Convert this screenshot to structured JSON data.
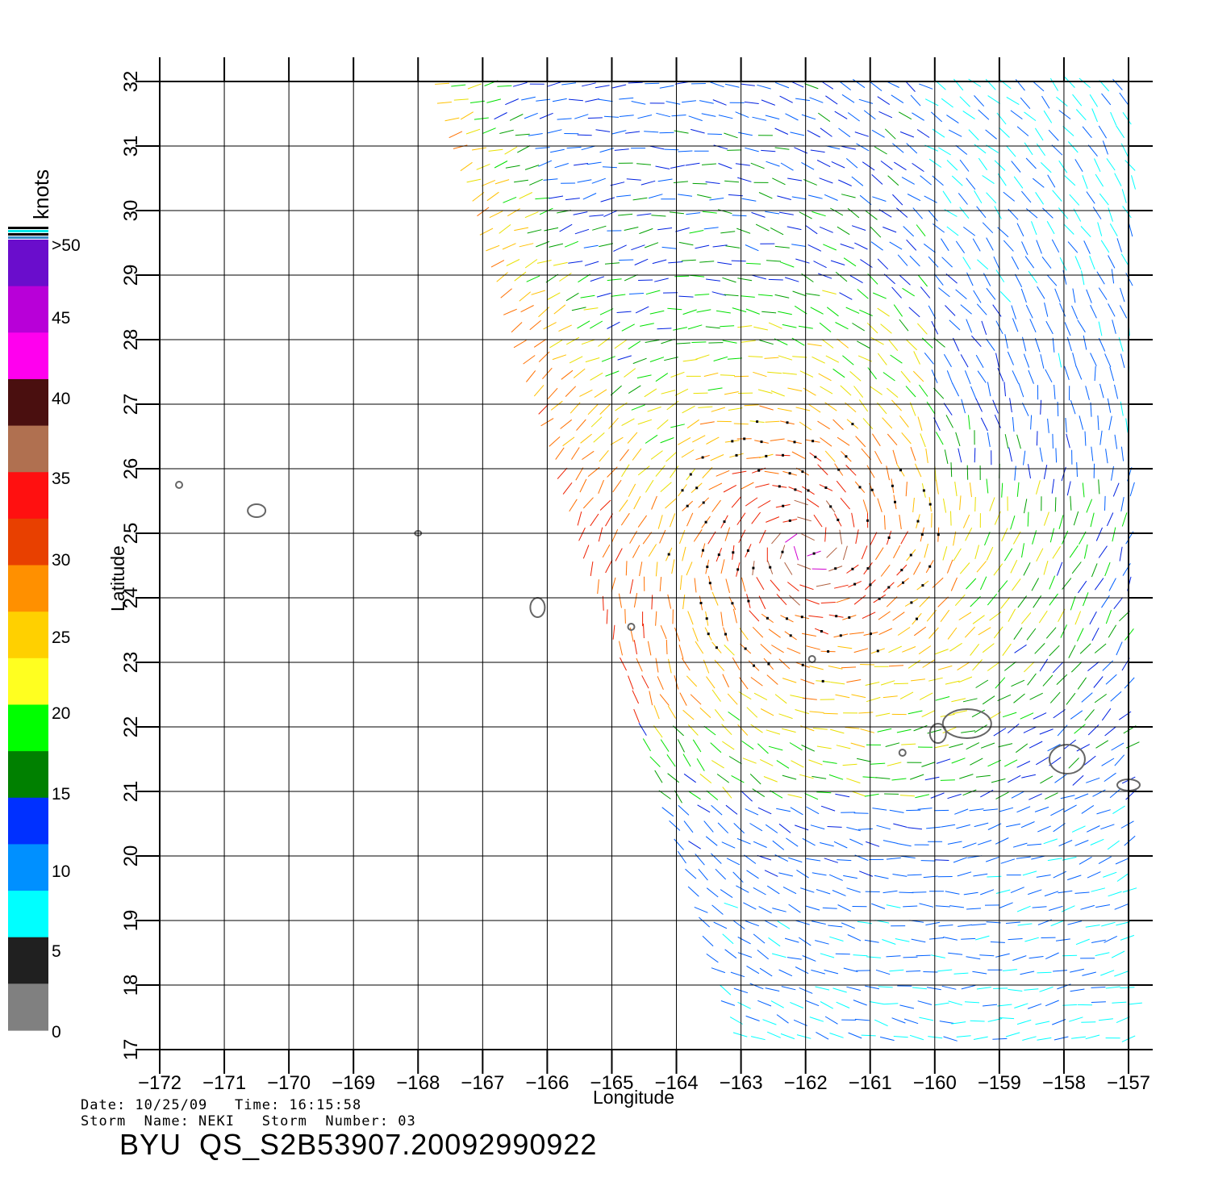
{
  "map": {
    "lon_ticks": [
      "−172",
      "−171",
      "−170",
      "−169",
      "−168",
      "−167",
      "−166",
      "−165",
      "−164",
      "−163",
      "−162",
      "−161",
      "−160",
      "−159",
      "−158",
      "−157"
    ],
    "lat_ticks": [
      "17",
      "18",
      "19",
      "20",
      "21",
      "22",
      "23",
      "24",
      "25",
      "26",
      "27",
      "28",
      "29",
      "30",
      "31",
      "32"
    ],
    "xlabel": "Longitude",
    "ylabel": "Latitude",
    "lon_range": [
      -172,
      -157
    ],
    "lat_range": [
      17,
      32
    ],
    "storm_center_approx": {
      "lon": -162.0,
      "lat": 24.8
    }
  },
  "colorbar": {
    "unit": "knots",
    "labels": [
      ">50",
      "45",
      "40",
      "35",
      "30",
      "25",
      "20",
      "15",
      "10",
      "5",
      "0"
    ],
    "colors": [
      "#6a0dcc",
      "#b800d8",
      "#ff00ee",
      "#4a0f0f",
      "#b07050",
      "#ff1010",
      "#e84000",
      "#ff9000",
      "#ffd000",
      "#ffff20",
      "#00ff00",
      "#008000",
      "#0030ff",
      "#0090ff",
      "#00ffff",
      "#202020",
      "#808080"
    ]
  },
  "footer": {
    "line1": "Date: 10/25/09   Time: 16:15:58",
    "line2": "Storm  Name: NEKI   Storm  Number: 03",
    "product_id": "BYU  QS_S2B53907.20092990922"
  }
}
